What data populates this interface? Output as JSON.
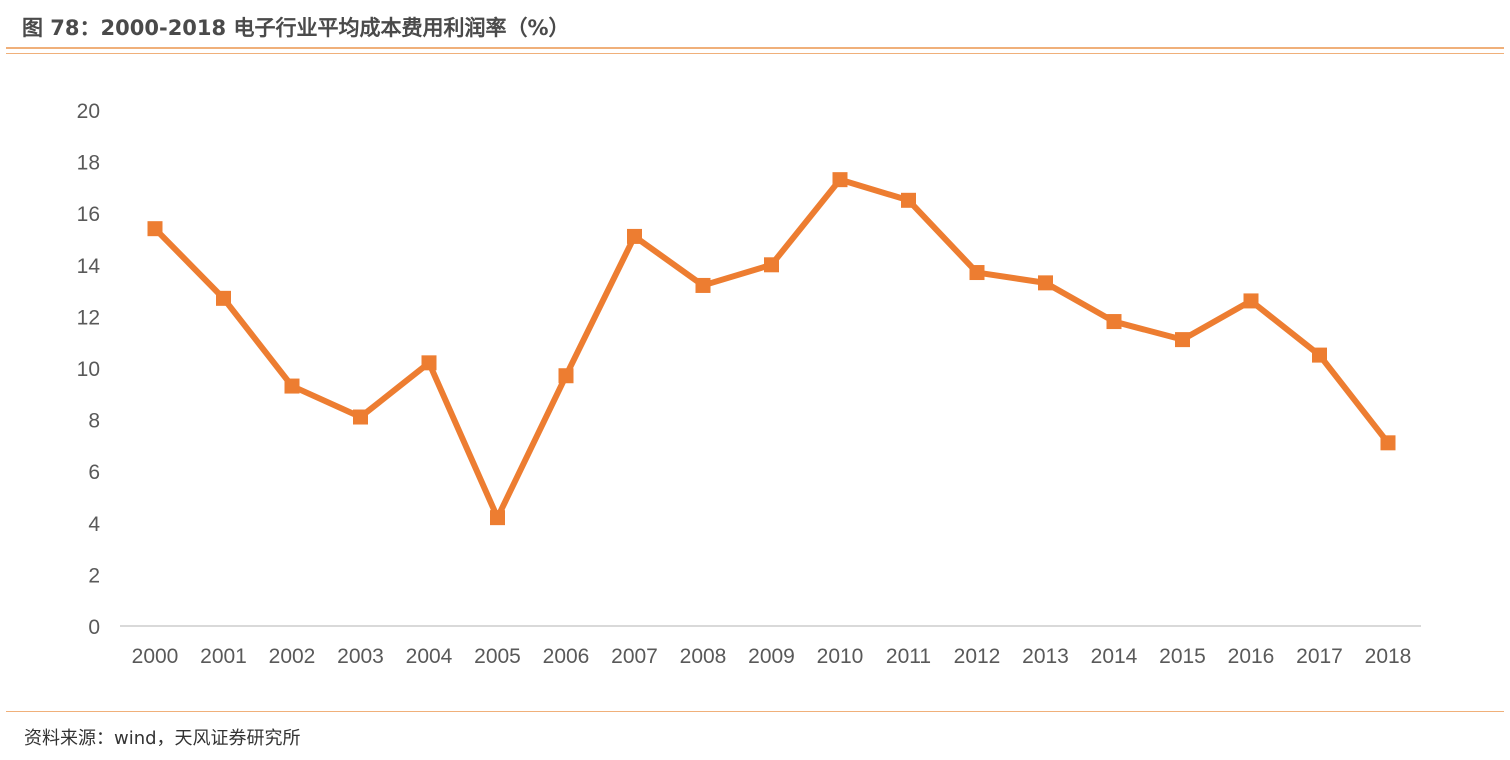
{
  "title": "图 78：2000-2018 电子行业平均成本费用利润率（%）",
  "source": "资料来源：wind，天风证券研究所",
  "colors": {
    "series": "#ed7d31",
    "axis": "#d9d9d9",
    "tick_text": "#595959",
    "rule": "#f0b07a"
  },
  "chart_data": {
    "type": "line",
    "title": "2000-2018 电子行业平均成本费用利润率（%）",
    "x": [
      "2000",
      "2001",
      "2002",
      "2003",
      "2004",
      "2005",
      "2006",
      "2007",
      "2008",
      "2009",
      "2010",
      "2011",
      "2012",
      "2013",
      "2014",
      "2015",
      "2016",
      "2017",
      "2018"
    ],
    "series": [
      {
        "values": [
          15.4,
          12.7,
          9.3,
          8.1,
          10.2,
          4.2,
          9.7,
          15.1,
          13.2,
          14.0,
          17.3,
          16.5,
          13.7,
          13.3,
          11.8,
          11.1,
          12.6,
          10.5,
          7.1
        ],
        "marker": "square"
      }
    ],
    "ylim": [
      0,
      20
    ],
    "yticks": [
      0,
      2,
      4,
      6,
      8,
      10,
      12,
      14,
      16,
      18,
      20
    ],
    "grid": false,
    "legend": "none"
  }
}
